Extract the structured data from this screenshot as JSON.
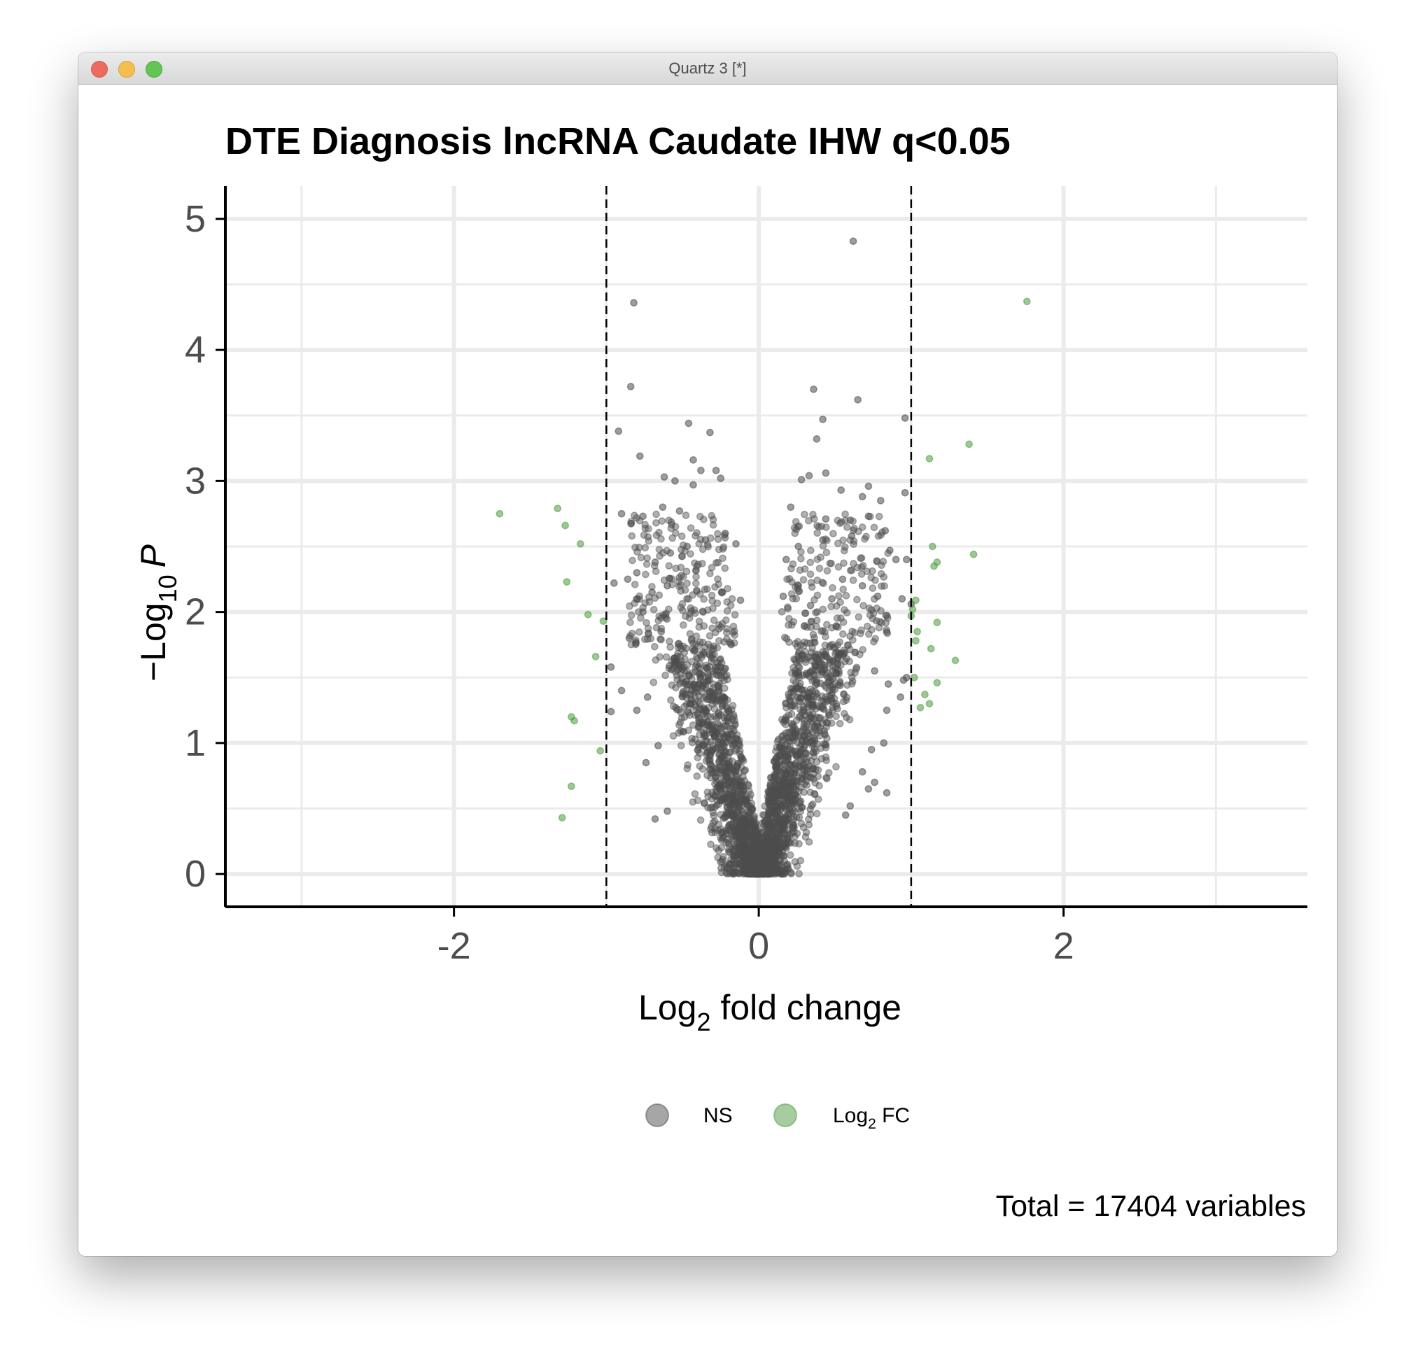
{
  "window": {
    "title": "Quartz 3 [*]"
  },
  "chart_data": {
    "type": "scatter",
    "title": "DTE Diagnosis lncRNA Caudate IHW q<0.05",
    "xlabel": {
      "prefix": "Log",
      "sub": "2",
      "suffix": " fold change"
    },
    "ylabel": {
      "prefix": "−Log",
      "sub": "10",
      "suffix": "P"
    },
    "xlim": [
      -3.5,
      3.6
    ],
    "ylim": [
      -0.25,
      5.25
    ],
    "xticks": [
      -2,
      0,
      2
    ],
    "xtick_labels": [
      "-2",
      "0",
      "2"
    ],
    "yticks": [
      0,
      1,
      2,
      3,
      4,
      5
    ],
    "ytick_labels": [
      "0",
      "1",
      "2",
      "3",
      "4",
      "5"
    ],
    "grid": true,
    "fc_cutoff_lines": [
      -1,
      1
    ],
    "legend_position": "bottom",
    "legend": [
      {
        "label": "NS",
        "color": "#4d4d4d"
      },
      {
        "label": "Log",
        "label_sub": "2",
        "label_suffix": " FC",
        "color": "#4f9a40"
      }
    ],
    "caption": "Total = 17404 variables",
    "series": [
      {
        "name": "NS",
        "color": "#4d4d4d",
        "points": [
          [
            0.62,
            4.83
          ],
          [
            -0.82,
            4.36
          ],
          [
            -0.84,
            3.72
          ],
          [
            0.36,
            3.7
          ],
          [
            0.65,
            3.62
          ],
          [
            0.42,
            3.47
          ],
          [
            0.96,
            3.48
          ],
          [
            -0.46,
            3.44
          ],
          [
            -0.92,
            3.38
          ],
          [
            -0.32,
            3.37
          ],
          [
            0.38,
            3.32
          ],
          [
            -0.78,
            3.19
          ],
          [
            -0.43,
            3.16
          ],
          [
            -0.38,
            3.08
          ],
          [
            -0.28,
            3.08
          ],
          [
            -0.25,
            3.02
          ],
          [
            -0.62,
            3.03
          ],
          [
            -0.55,
            3.0
          ],
          [
            -0.43,
            2.97
          ],
          [
            0.28,
            3.01
          ],
          [
            0.33,
            3.04
          ],
          [
            0.44,
            3.06
          ],
          [
            0.72,
            2.96
          ],
          [
            0.54,
            2.93
          ],
          [
            0.68,
            2.88
          ],
          [
            0.8,
            2.85
          ],
          [
            0.96,
            2.91
          ],
          [
            -0.63,
            2.8
          ],
          [
            -0.76,
            2.73
          ],
          [
            -0.9,
            2.75
          ],
          [
            -0.52,
            2.77
          ],
          [
            0.21,
            2.8
          ],
          [
            0.44,
            2.71
          ],
          [
            0.6,
            2.7
          ],
          [
            0.72,
            2.73
          ],
          [
            0.83,
            2.62
          ],
          [
            0.61,
            2.58
          ],
          [
            0.42,
            2.55
          ],
          [
            0.86,
            2.47
          ],
          [
            0.9,
            2.4
          ],
          [
            0.97,
            2.4
          ],
          [
            0.26,
            2.5
          ],
          [
            0.18,
            2.4
          ],
          [
            -0.15,
            2.52
          ],
          [
            -0.22,
            2.6
          ],
          [
            -0.35,
            2.55
          ],
          [
            -0.47,
            2.5
          ],
          [
            -0.58,
            2.45
          ],
          [
            -0.68,
            2.38
          ],
          [
            -0.8,
            2.3
          ],
          [
            -0.95,
            2.22
          ],
          [
            -0.86,
            2.25
          ],
          [
            -0.7,
            2.15
          ],
          [
            -0.6,
            2.2
          ],
          [
            -0.12,
            2.09
          ],
          [
            0.16,
            2.12
          ],
          [
            0.26,
            2.2
          ],
          [
            0.34,
            2.05
          ],
          [
            0.48,
            2.1
          ],
          [
            0.55,
            2.25
          ],
          [
            0.68,
            2.2
          ],
          [
            0.78,
            2.12
          ],
          [
            0.94,
            2.1
          ],
          [
            1.0,
            2.06
          ],
          [
            -0.76,
            2.0
          ],
          [
            -0.64,
            1.85
          ],
          [
            -0.85,
            1.8
          ],
          [
            -0.97,
            1.58
          ],
          [
            -0.9,
            1.4
          ],
          [
            -0.97,
            1.24
          ],
          [
            -0.73,
            1.35
          ],
          [
            -0.8,
            1.25
          ],
          [
            0.76,
            1.55
          ],
          [
            0.85,
            1.45
          ],
          [
            0.97,
            1.5
          ],
          [
            0.93,
            1.35
          ],
          [
            0.84,
            1.25
          ],
          [
            0.95,
            1.48
          ],
          [
            0.68,
            0.78
          ],
          [
            0.72,
            0.65
          ],
          [
            0.76,
            0.7
          ],
          [
            -0.68,
            0.42
          ],
          [
            -0.6,
            0.48
          ],
          [
            0.57,
            0.45
          ],
          [
            0.6,
            0.52
          ],
          [
            0.84,
            0.62
          ],
          [
            0.82,
            1.0
          ],
          [
            0.74,
            0.95
          ],
          [
            -0.66,
            0.98
          ],
          [
            -0.74,
            0.85
          ]
        ]
      },
      {
        "name": "Log2 FC",
        "color": "#4f9a40",
        "points": [
          [
            1.76,
            4.37
          ],
          [
            1.38,
            3.28
          ],
          [
            1.12,
            3.17
          ],
          [
            -1.7,
            2.75
          ],
          [
            -1.32,
            2.79
          ],
          [
            -1.27,
            2.66
          ],
          [
            -1.17,
            2.52
          ],
          [
            1.14,
            2.5
          ],
          [
            1.41,
            2.44
          ],
          [
            1.15,
            2.35
          ],
          [
            1.17,
            2.38
          ],
          [
            -1.26,
            2.23
          ],
          [
            -1.12,
            1.98
          ],
          [
            -1.02,
            1.93
          ],
          [
            1.03,
            2.09
          ],
          [
            1.01,
            2.02
          ],
          [
            1.0,
            1.97
          ],
          [
            1.17,
            1.92
          ],
          [
            1.04,
            1.85
          ],
          [
            1.03,
            1.78
          ],
          [
            1.13,
            1.72
          ],
          [
            -1.07,
            1.66
          ],
          [
            1.29,
            1.63
          ],
          [
            1.02,
            1.5
          ],
          [
            1.17,
            1.46
          ],
          [
            1.09,
            1.37
          ],
          [
            1.12,
            1.3
          ],
          [
            1.06,
            1.27
          ],
          [
            -1.23,
            1.2
          ],
          [
            -1.21,
            1.17
          ],
          [
            -1.04,
            0.94
          ],
          [
            -1.23,
            0.67
          ],
          [
            -1.29,
            0.43
          ]
        ]
      }
    ]
  }
}
